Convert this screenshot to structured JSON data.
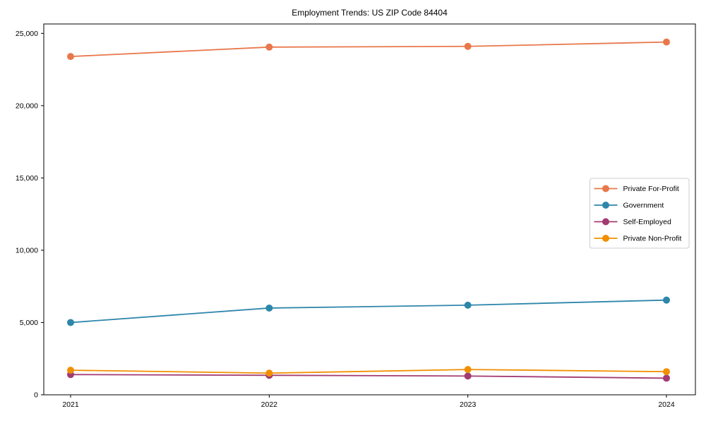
{
  "chart_data": {
    "type": "line",
    "title": "Employment Trends: US ZIP Code 84404",
    "xlabel": "",
    "ylabel": "",
    "x": [
      2021,
      2022,
      2023,
      2024
    ],
    "xtick_labels": [
      "2021",
      "2022",
      "2023",
      "2024"
    ],
    "yticks": [
      0,
      5000,
      10000,
      15000,
      20000,
      25000
    ],
    "ytick_labels": [
      "0",
      "5,000",
      "10,000",
      "15,000",
      "20,000",
      "25,000"
    ],
    "ylim": [
      0,
      25650
    ],
    "grid": false,
    "legend_position": "center right",
    "marker": "circle",
    "series": [
      {
        "name": "Private For-Profit",
        "color": "#e8784b",
        "values": [
          23400,
          24050,
          24100,
          24400
        ]
      },
      {
        "name": "Government",
        "color": "#2e86ab",
        "values": [
          5000,
          6000,
          6200,
          6550
        ]
      },
      {
        "name": "Self-Employed",
        "color": "#a23b72",
        "values": [
          1400,
          1350,
          1300,
          1150
        ]
      },
      {
        "name": "Private Non-Profit",
        "color": "#f18f01",
        "values": [
          1700,
          1500,
          1750,
          1600
        ]
      }
    ]
  }
}
